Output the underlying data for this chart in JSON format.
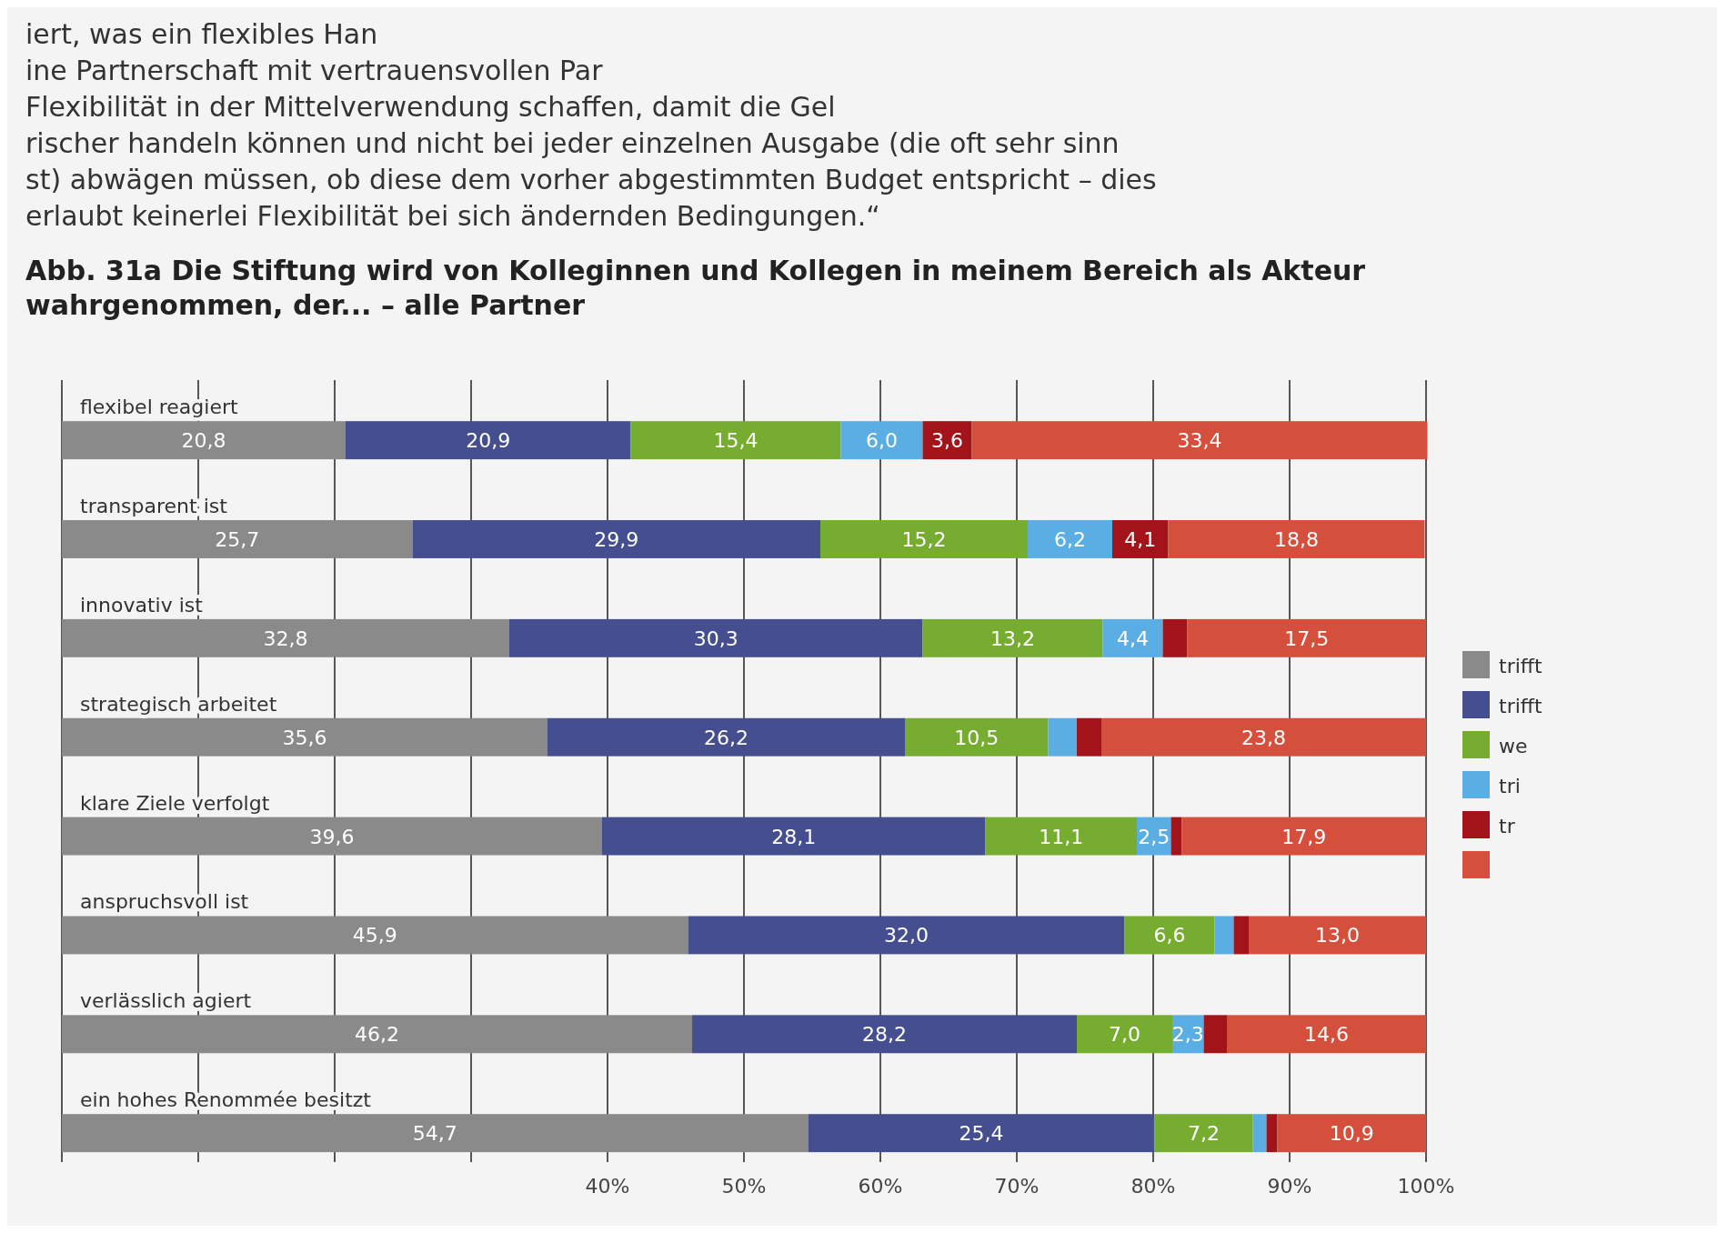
{
  "chart_data": {
    "type": "bar",
    "orientation": "horizontal",
    "stacked": true,
    "title": "Abb. 31a Die Stiftung wird von Kolleginnen und Kollegen in meinem Bereich als Akteur wahrgenommen, der... – alle Partner",
    "annotations": [
      "iert, was ein flexibles Han",
      "ine Partnerschaft mit vertrauensvollen Par",
      "Flexibilität in der Mittelverwendung schaffen, damit die Gel",
      "rischer handeln können und nicht bei jeder einzelnen Ausgabe (die oft sehr sinn",
      "st) abwägen müssen, ob diese dem vorher abgestimmten Budget entspricht – dies",
      "erlaubt keinerlei Flexibilität bei sich ändernden Bedingungen.“"
    ],
    "categories": [
      "flexibel reagiert",
      "transparent ist",
      "innovativ ist",
      "strategisch arbeitet",
      "klare Ziele verfolgt",
      "anspruchsvoll ist",
      "verlässlich agiert",
      "ein hohes Renommée besitzt"
    ],
    "series": [
      {
        "name": "trifft",
        "color": "#8a8a8a",
        "values": [
          20.8,
          25.7,
          32.8,
          35.6,
          39.6,
          45.9,
          46.2,
          54.7
        ],
        "value_labels": [
          "20,8",
          "25,7",
          "32,8",
          "35,6",
          "39,6",
          "45,9",
          "46,2",
          "54,7"
        ]
      },
      {
        "name": "trifft",
        "color": "#454f8f",
        "values": [
          20.9,
          29.9,
          30.3,
          26.2,
          28.1,
          32.0,
          28.2,
          25.4
        ],
        "value_labels": [
          "20,9",
          "29,9",
          "30,3",
          "26,2",
          "28,1",
          "32,0",
          "28,2",
          "25,4"
        ]
      },
      {
        "name": "we",
        "color": "#76ac2f",
        "values": [
          15.4,
          15.2,
          13.2,
          10.5,
          11.1,
          6.6,
          7.0,
          7.2
        ],
        "value_labels": [
          "15,4",
          "15,2",
          "13,2",
          "10,5",
          "11,1",
          "6,6",
          "7,0",
          "7,2"
        ]
      },
      {
        "name": "tri",
        "color": "#5aaee3",
        "values": [
          6.0,
          6.2,
          4.4,
          2.1,
          2.5,
          1.4,
          2.3,
          1.0
        ],
        "value_labels": [
          "6,0",
          "6,2",
          "4,4",
          null,
          "2,5",
          null,
          "2,3",
          null
        ]
      },
      {
        "name": "tr",
        "color": "#a3141a",
        "values": [
          3.6,
          4.1,
          1.8,
          1.8,
          0.8,
          1.1,
          1.7,
          0.8
        ],
        "value_labels": [
          "3,6",
          "4,1",
          null,
          null,
          null,
          null,
          null,
          null
        ]
      },
      {
        "color": "#d5503c",
        "values": [
          33.4,
          18.8,
          17.5,
          23.8,
          17.9,
          13.0,
          14.6,
          10.9
        ],
        "value_labels": [
          "33,4",
          "18,8",
          "17,5",
          "23,8",
          "17,9",
          "13,0",
          "14,6",
          "10,9"
        ]
      }
    ],
    "xlim": [
      0,
      100
    ],
    "xticks": [
      {
        "value": 0,
        "label": null
      },
      {
        "value": 10,
        "label": null
      },
      {
        "value": 20,
        "label": null
      },
      {
        "value": 30,
        "label": null
      },
      {
        "value": 40,
        "label": "40%"
      },
      {
        "value": 50,
        "label": "50%"
      },
      {
        "value": 60,
        "label": "60%"
      },
      {
        "value": 70,
        "label": "70%"
      },
      {
        "value": 80,
        "label": "80%"
      },
      {
        "value": 90,
        "label": "90%"
      },
      {
        "value": 100,
        "label": "100%"
      }
    ],
    "grid": "x",
    "legend": "right"
  }
}
